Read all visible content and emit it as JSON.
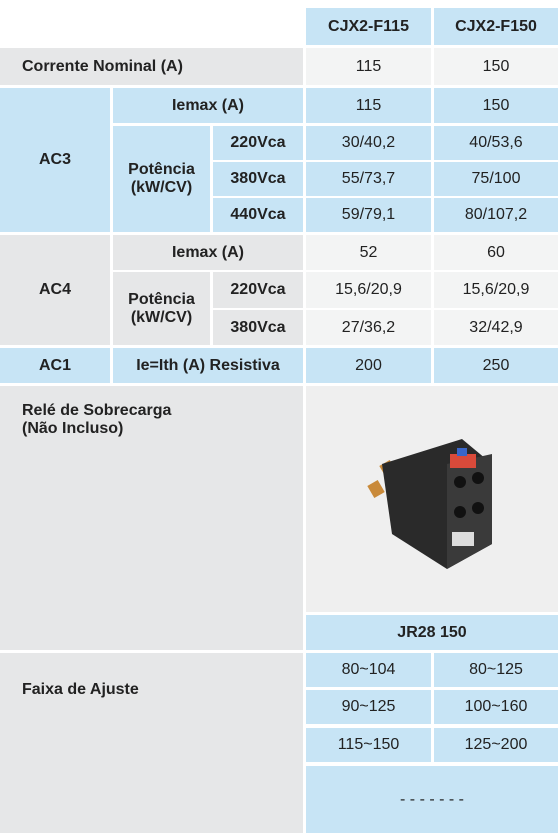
{
  "header": {
    "columns": [
      "CJX2-F115",
      "CJX2-F150"
    ]
  },
  "corrente_nominal": {
    "label": "Corrente Nominal (A)",
    "values": [
      "115",
      "150"
    ]
  },
  "ac3": {
    "label": "AC3",
    "iemax": {
      "label": "Iemax (A)",
      "values": [
        "115",
        "150"
      ]
    },
    "potencia": {
      "label": "Potência (kW/CV)",
      "rows": [
        {
          "voltage": "220Vca",
          "values": [
            "30/40,2",
            "40/53,6"
          ]
        },
        {
          "voltage": "380Vca",
          "values": [
            "55/73,7",
            "75/100"
          ]
        },
        {
          "voltage": "440Vca",
          "values": [
            "59/79,1",
            "80/107,2"
          ]
        }
      ]
    }
  },
  "ac4": {
    "label": "AC4",
    "iemax": {
      "label": "Iemax (A)",
      "values": [
        "52",
        "60"
      ]
    },
    "potencia": {
      "label": "Potência (kW/CV)",
      "rows": [
        {
          "voltage": "220Vca",
          "values": [
            "15,6/20,9",
            "15,6/20,9"
          ]
        },
        {
          "voltage": "380Vca",
          "values": [
            "27/36,2",
            "32/42,9"
          ]
        }
      ]
    }
  },
  "ac1": {
    "label": "AC1",
    "description": "Ie=Ith (A) Resistiva",
    "values": [
      "200",
      "250"
    ]
  },
  "relay": {
    "label": "Relé de Sobrecarga (Não Incluso)",
    "model": "JR28 150"
  },
  "adjustment": {
    "label": "Faixa de Ajuste",
    "rows": [
      [
        "80~104",
        "80~125"
      ],
      [
        "90~125",
        "100~160"
      ],
      [
        "115~150",
        "125~200"
      ]
    ],
    "placeholder": "- - - - - - -"
  }
}
